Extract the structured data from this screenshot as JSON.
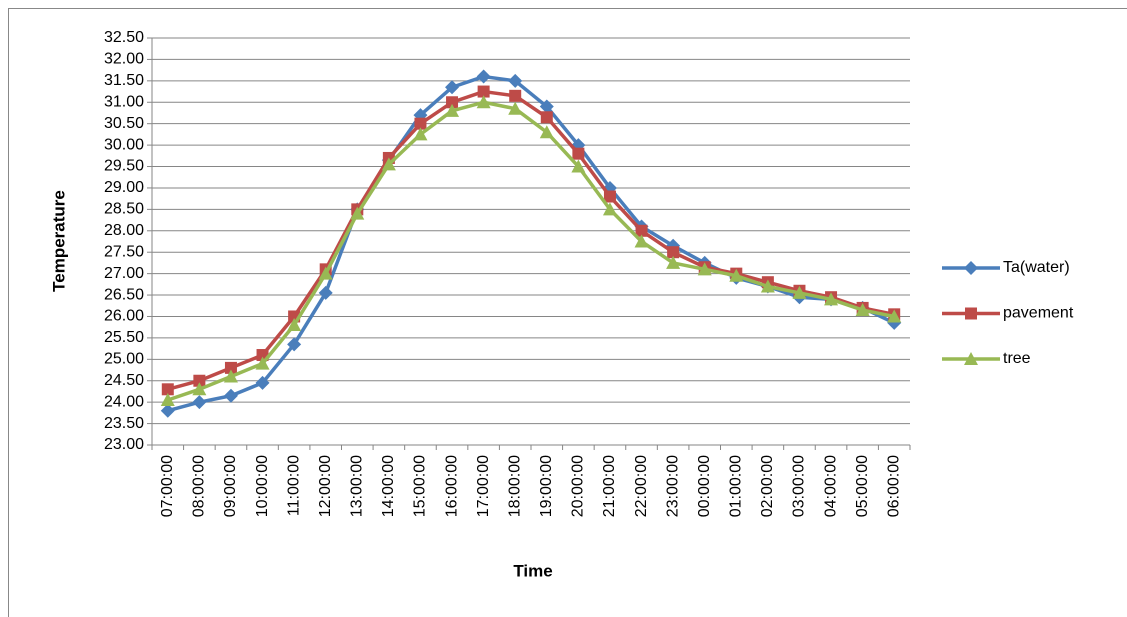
{
  "chart_data": {
    "type": "line",
    "y_label": "Temperature",
    "x_label": "Time",
    "categories": [
      "07:00:00",
      "08:00:00",
      "09:00:00",
      "10:00:00",
      "11:00:00",
      "12:00:00",
      "13:00:00",
      "14:00:00",
      "15:00:00",
      "16:00:00",
      "17:00:00",
      "18:00:00",
      "19:00:00",
      "20:00:00",
      "21:00:00",
      "22:00:00",
      "23:00:00",
      "00:00:00",
      "01:00:00",
      "02:00:00",
      "03:00:00",
      "04:00:00",
      "05:00:00",
      "06:00:00"
    ],
    "series": [
      {
        "name": "Ta(water)",
        "color": "#4a7ebb",
        "marker": "diamond",
        "values": [
          23.8,
          24.0,
          24.15,
          24.45,
          25.35,
          26.55,
          28.5,
          29.65,
          30.7,
          31.35,
          31.6,
          31.5,
          30.9,
          30.0,
          29.0,
          28.1,
          27.65,
          27.25,
          26.9,
          26.7,
          26.45,
          26.4,
          26.2,
          25.85
        ]
      },
      {
        "name": "pavement",
        "color": "#be4b48",
        "marker": "square",
        "values": [
          24.3,
          24.5,
          24.8,
          25.1,
          26.0,
          27.1,
          28.5,
          29.7,
          30.5,
          31.0,
          31.25,
          31.15,
          30.65,
          29.8,
          28.8,
          28.0,
          27.5,
          27.15,
          27.0,
          26.8,
          26.6,
          26.45,
          26.2,
          26.05
        ]
      },
      {
        "name": "tree",
        "color": "#98b954",
        "marker": "triangle",
        "values": [
          24.05,
          24.3,
          24.6,
          24.9,
          25.8,
          27.0,
          28.4,
          29.55,
          30.25,
          30.8,
          31.0,
          30.85,
          30.3,
          29.5,
          28.5,
          27.75,
          27.25,
          27.1,
          26.95,
          26.7,
          26.55,
          26.4,
          26.15,
          26.0
        ]
      }
    ],
    "ylim": [
      23,
      32.5
    ],
    "yticks": [
      {
        "value": 23,
        "label": "23.00"
      },
      {
        "value": 23.5,
        "label": "23.50"
      },
      {
        "value": 24,
        "label": "24.00"
      },
      {
        "value": 24.5,
        "label": "24.50"
      },
      {
        "value": 25,
        "label": "25.00"
      },
      {
        "value": 25.5,
        "label": "25.50"
      },
      {
        "value": 26,
        "label": "26.00"
      },
      {
        "value": 26.5,
        "label": "26.50"
      },
      {
        "value": 27,
        "label": "27.00"
      },
      {
        "value": 27.5,
        "label": "27.50"
      },
      {
        "value": 28,
        "label": "28.00"
      },
      {
        "value": 28.5,
        "label": "28.50"
      },
      {
        "value": 29,
        "label": "29.00"
      },
      {
        "value": 29.5,
        "label": "29.50"
      },
      {
        "value": 30,
        "label": "30.00"
      },
      {
        "value": 30.5,
        "label": "30.50"
      },
      {
        "value": 31,
        "label": "31.00"
      },
      {
        "value": 31.5,
        "label": "31.50"
      },
      {
        "value": 32,
        "label": "32.00"
      },
      {
        "value": 32.5,
        "label": "32.50"
      }
    ],
    "grid": true,
    "legend": "right"
  }
}
